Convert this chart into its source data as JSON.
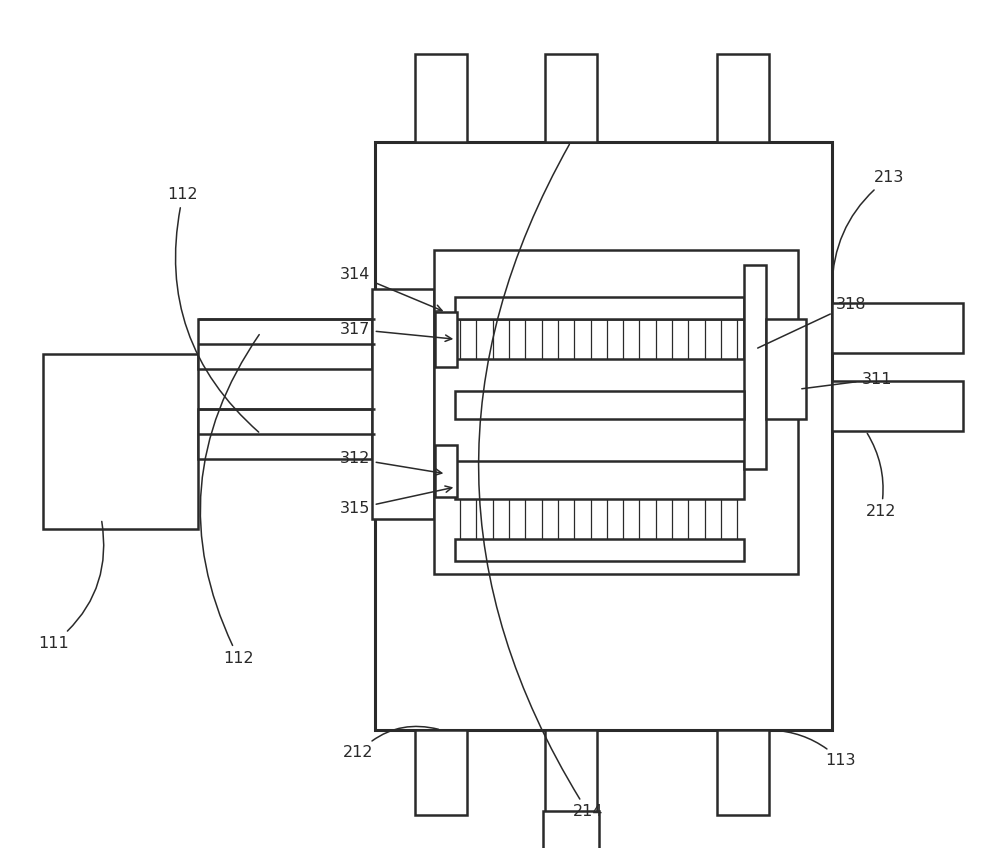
{
  "bg_color": "#ffffff",
  "line_color": "#2a2a2a",
  "lw": 1.8,
  "fig_w": 10.0,
  "fig_h": 8.49,
  "dpi": 100
}
